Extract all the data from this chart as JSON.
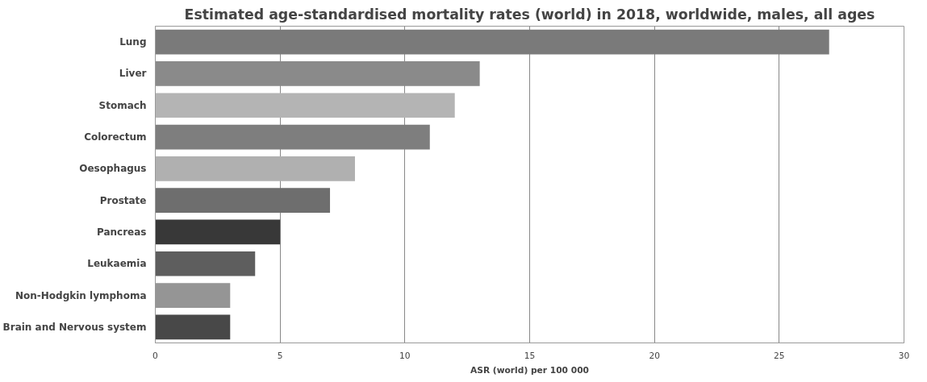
{
  "chart_data": {
    "type": "bar",
    "orientation": "horizontal",
    "title": "Estimated age-standardised mortality rates (world) in 2018, worldwide, males, all ages",
    "xlabel": "ASR (world) per 100 000",
    "categories": [
      "Lung",
      "Liver",
      "Stomach",
      "Colorectum",
      "Oesophagus",
      "Prostate",
      "Pancreas",
      "Leukaemia",
      "Non-Hodgkin lymphoma",
      "Brain and Nervous system"
    ],
    "values": [
      27,
      13,
      12,
      11,
      8,
      7,
      5,
      4,
      3,
      3
    ],
    "colors": [
      "#7a7a7a",
      "#8a8a8a",
      "#b4b4b4",
      "#7e7e7e",
      "#b0b0b0",
      "#6e6e6e",
      "#383838",
      "#5e5e5e",
      "#959595",
      "#484848"
    ],
    "xlim": [
      0,
      30
    ],
    "xticks": [
      0,
      5,
      10,
      15,
      20,
      25,
      30
    ],
    "grid": "x"
  }
}
